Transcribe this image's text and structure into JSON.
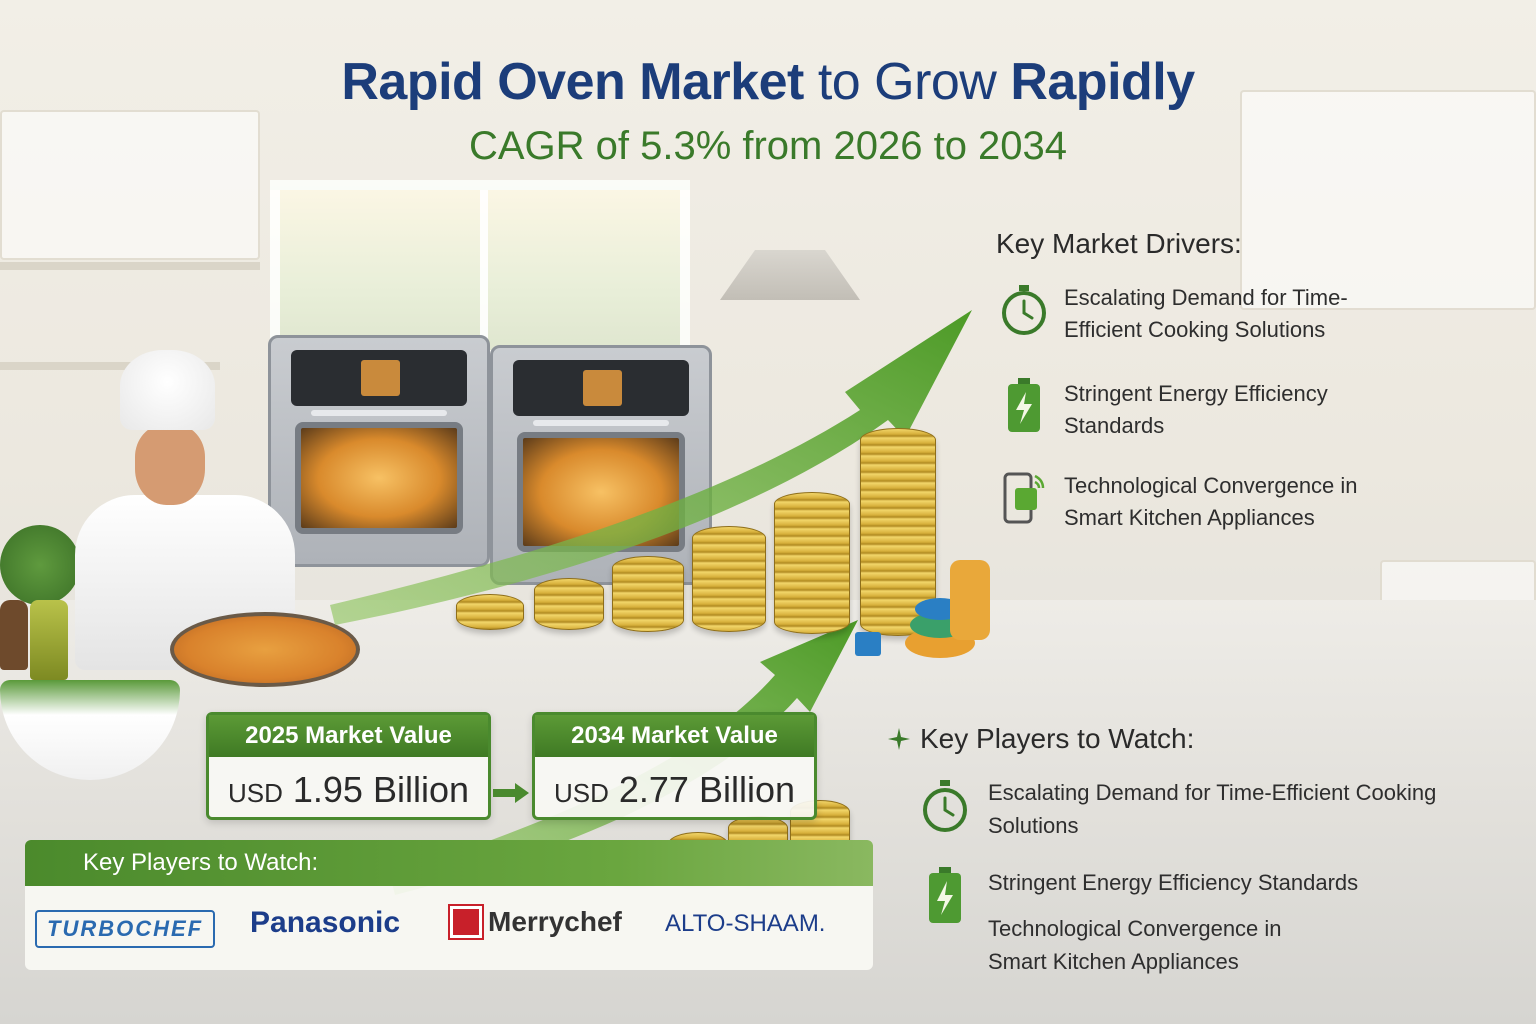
{
  "title": {
    "part1": "Rapid Oven Market",
    "part2": "to Grow",
    "part3": "Rapidly"
  },
  "subtitle": "CAGR of 5.3% from 2026 to 2034",
  "key_drivers": {
    "title": "Key Market Drivers:",
    "items": [
      {
        "icon": "stopwatch-icon",
        "text": "Escalating Demand for Time-Efficient Cooking Solutions"
      },
      {
        "icon": "battery-icon",
        "text": "Stringent Energy Efficiency Standards"
      },
      {
        "icon": "smartphone-icon",
        "text": "Technological Convergence in Smart Kitchen Appliances"
      }
    ]
  },
  "market_value": {
    "start": {
      "label": "2025 Market Value",
      "currency": "USD",
      "amount": "1.95 Billion"
    },
    "end": {
      "label": "2034 Market Value",
      "currency": "USD",
      "amount": "2.77 Billion"
    }
  },
  "players_bar": {
    "title": "Key Players to Watch:",
    "logos": [
      "TURBOCHEF",
      "Panasonic",
      "Merrychef",
      "ALTO-SHAAM."
    ]
  },
  "key_players_right": {
    "title": "Key Players to Watch:",
    "items": [
      {
        "icon": "stopwatch-icon",
        "text": "Escalating Demand for Time-Efficient Cooking Solutions"
      },
      {
        "icon": "battery-icon",
        "text": "Stringent Energy Efficiency Standards"
      },
      {
        "icon": "none",
        "text": "Technological Convergence in Smart Kitchen Appliances"
      }
    ]
  },
  "colors": {
    "title_blue": "#1c3d7a",
    "accent_green": "#3a7a2a",
    "arrow_green": "#5aa832",
    "coin_gold": "#d8b03c"
  }
}
